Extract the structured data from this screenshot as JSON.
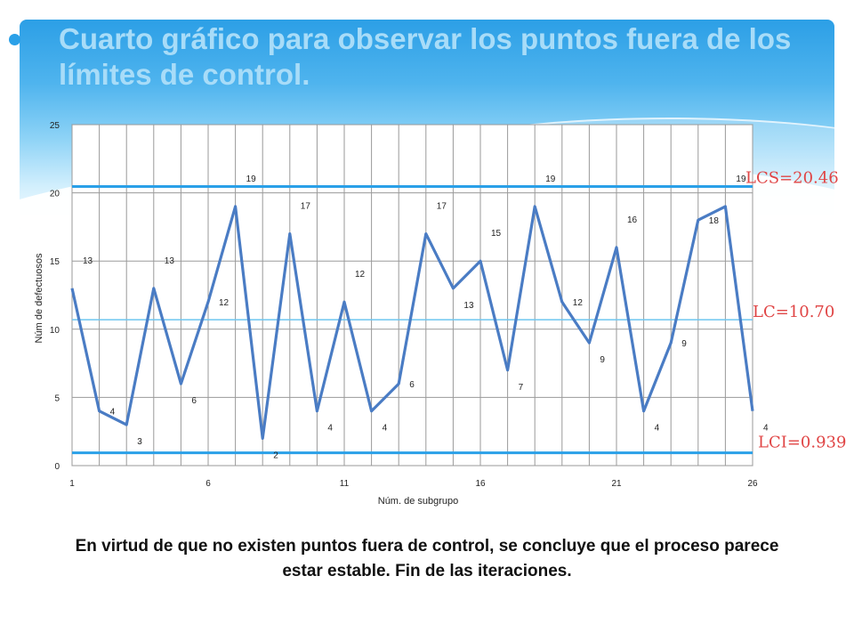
{
  "slide": {
    "title": "Cuarto gráfico para observar los puntos fuera de los límites de control.",
    "caption": "En virtud de que no existen puntos fuera de control, se concluye que el proceso parece estar estable. Fin de las iteraciones."
  },
  "chart_data": {
    "type": "line",
    "title": "",
    "xlabel": "Núm. de subgrupo",
    "ylabel": "Núm de defectuosos",
    "x": [
      1,
      2,
      3,
      4,
      5,
      6,
      7,
      8,
      9,
      10,
      11,
      12,
      13,
      14,
      15,
      16,
      17,
      18,
      19,
      20,
      21,
      22,
      23,
      24,
      25,
      26
    ],
    "values": [
      13,
      4,
      3,
      13,
      6,
      12,
      19,
      2,
      17,
      4,
      12,
      4,
      6,
      17,
      13,
      15,
      7,
      19,
      12,
      9,
      16,
      4,
      9,
      18,
      19,
      4
    ],
    "data_labels": [
      "13",
      "4",
      "3",
      "13",
      "6",
      "12",
      "19",
      "2",
      "17",
      "4",
      "12",
      "4",
      "6",
      "17",
      "13",
      "15",
      "7",
      "19",
      "12",
      "9",
      "16",
      "4",
      "9",
      "18",
      "19",
      "4"
    ],
    "ylim": [
      0,
      25
    ],
    "yticks": [
      0,
      5,
      10,
      15,
      20,
      25
    ],
    "xticks": [
      1,
      6,
      11,
      16,
      21,
      26
    ],
    "grid": true,
    "series_color": "#4a7cc4",
    "control_limits": [
      {
        "name": "LCS",
        "value": 20.46,
        "label": "LCS=20.46",
        "color": "#2aa0e8"
      },
      {
        "name": "LC",
        "value": 10.7,
        "label": "LC=10.70",
        "color": "#6ec6f0"
      },
      {
        "name": "LCI",
        "value": 0.939,
        "label": "LCI=0.939",
        "color": "#2aa0e8"
      }
    ],
    "limit_label_color": "#e04545"
  }
}
